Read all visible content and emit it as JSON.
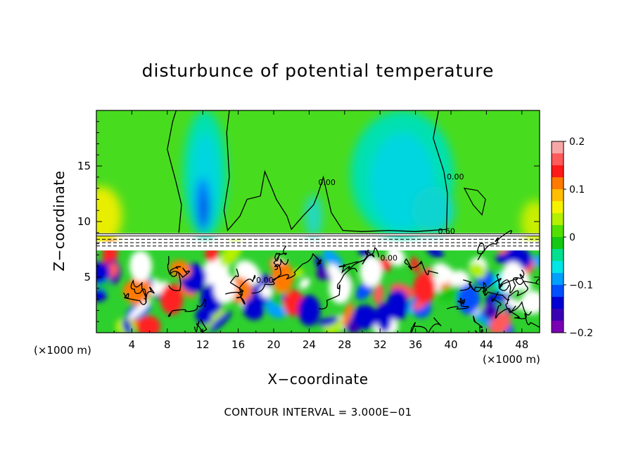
{
  "chart_data": {
    "type": "heatmap",
    "title": "disturbunce of potential temperature",
    "xlabel": "X−coordinate",
    "ylabel": "Z−coordinate",
    "x_unit_label": "(×1000 m)",
    "y_unit_label": "(×1000 m)",
    "footer": "CONTOUR INTERVAL = 3.000E−01",
    "xlim": [
      0,
      50
    ],
    "ylim": [
      0,
      20
    ],
    "x_ticks": [
      4,
      8,
      12,
      16,
      20,
      24,
      28,
      32,
      36,
      40,
      44,
      48
    ],
    "y_ticks": [
      5,
      10,
      15
    ],
    "colorbar": {
      "range": [
        -0.2,
        0.2
      ],
      "ticks": [
        "0.2",
        "0.1",
        "0",
        "−0.1",
        "−0.2"
      ],
      "colors": [
        "#f7a6a6",
        "#ff5a5a",
        "#ff1a1a",
        "#ff7a00",
        "#ffbf00",
        "#f5f200",
        "#b4f000",
        "#52e000",
        "#14c814",
        "#00e090",
        "#00e6e6",
        "#00a0ff",
        "#0050ff",
        "#0000d2",
        "#3a00b4",
        "#7a00b4"
      ]
    },
    "contour_labels": [
      {
        "text": "0.00",
        "x": 26.0,
        "z": 13.3
      },
      {
        "text": "0.00",
        "x": 40.5,
        "z": 13.8
      },
      {
        "text": "0.60",
        "x": 39.5,
        "z": 8.9
      },
      {
        "text": "0.00",
        "x": 33.0,
        "z": 6.5
      },
      {
        "text": "0.00",
        "x": 19.0,
        "z": 4.5
      }
    ],
    "features": {
      "upper_background": "green",
      "tropopause_z": 8.9,
      "upper_blue_plumes": [
        {
          "x_min": 9.5,
          "x_max": 15.0,
          "z_min": 8.5,
          "z_max": 20
        },
        {
          "x_min": 28.0,
          "x_max": 41.0,
          "z_min": 8.5,
          "z_max": 20
        }
      ]
    }
  }
}
